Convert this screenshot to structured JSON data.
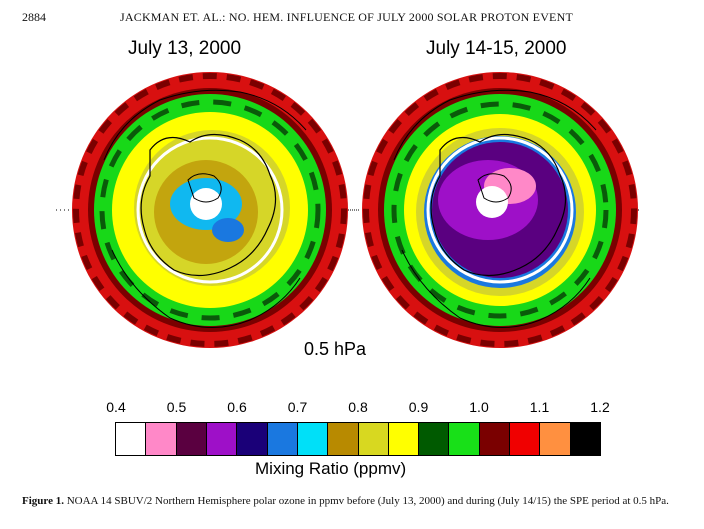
{
  "header": {
    "page_number": "2884",
    "running_head": "JACKMAN ET. AL.: NO. HEM. INFLUENCE OF JULY 2000 SOLAR PROTON EVENT"
  },
  "maps": {
    "left_title": "July 13, 2000",
    "right_title": "July 14-15, 2000",
    "pressure_label": "0.5 hPa"
  },
  "colorbar": {
    "ticks": [
      "0.4",
      "0.5",
      "0.6",
      "0.7",
      "0.8",
      "0.9",
      "1.0",
      "1.1",
      "1.2"
    ],
    "colors": [
      "#ffffff",
      "#ff88c8",
      "#5a0040",
      "#9e10c8",
      "#1a0078",
      "#1a78e0",
      "#00e0f8",
      "#b88a00",
      "#d8d820",
      "#ffff00",
      "#005a00",
      "#18e018",
      "#7a0000",
      "#f00000",
      "#ff9040",
      "#000000"
    ],
    "label": "Mixing Ratio (ppmv)"
  },
  "caption": {
    "label": "Figure 1.",
    "text": "NOAA 14 SBUV/2 Northern Hemisphere polar ozone in ppmv before (July 13, 2000) and during (July 14/15) the SPE period at 0.5 hPa."
  }
}
